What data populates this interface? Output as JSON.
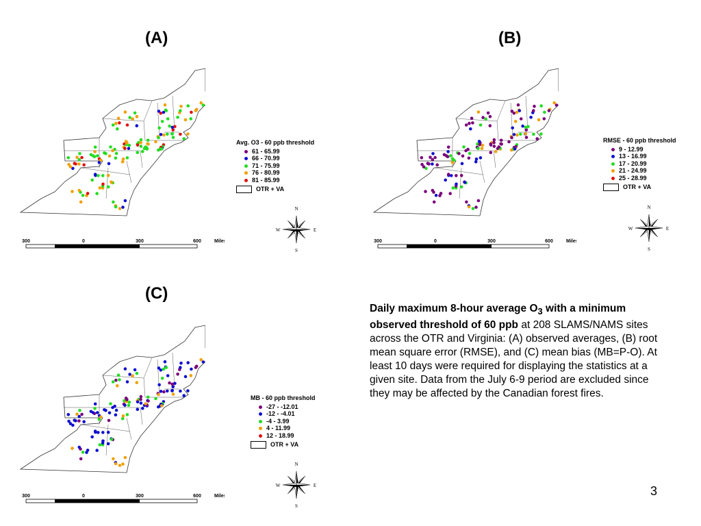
{
  "panels": [
    {
      "id": "A",
      "label": "(A)",
      "legend_title": "Avg. O3 - 60 ppb threshold",
      "classes": [
        {
          "label": "61 - 65.99",
          "color": "#7a007a"
        },
        {
          "label": "66 - 70.99",
          "color": "#1010d0"
        },
        {
          "label": "71 - 75.99",
          "color": "#22dd22"
        },
        {
          "label": "76 - 80.99",
          "color": "#f0a000"
        },
        {
          "label": "81 - 85.99",
          "color": "#e01010"
        }
      ],
      "boundary_label": "OTR + VA",
      "dominant_colors": [
        "#f0a000",
        "#22dd22",
        "#22dd22",
        "#1010d0",
        "#f0a000",
        "#22dd22",
        "#e01010"
      ]
    },
    {
      "id": "B",
      "label": "(B)",
      "legend_title": "RMSE - 60 ppb threshold",
      "classes": [
        {
          "label": "9 - 12.99",
          "color": "#7a007a"
        },
        {
          "label": "13 - 16.99",
          "color": "#1010d0"
        },
        {
          "label": "17 - 20.99",
          "color": "#22dd22"
        },
        {
          "label": "21 - 24.99",
          "color": "#f0a000"
        },
        {
          "label": "25 - 28.99",
          "color": "#e01010"
        }
      ],
      "boundary_label": "OTR + VA",
      "dominant_colors": [
        "#7a007a",
        "#7a007a",
        "#1010d0",
        "#1010d0",
        "#7a007a",
        "#22dd22",
        "#f0a000"
      ]
    },
    {
      "id": "C",
      "label": "(C)",
      "legend_title": "MB - 60 ppb threshold",
      "classes": [
        {
          "label": "-27 - -12.01",
          "color": "#7a007a"
        },
        {
          "label": "-12 - -4.01",
          "color": "#1010d0"
        },
        {
          "label": "-4 - 3.99",
          "color": "#22dd22"
        },
        {
          "label": "4 - 11.99",
          "color": "#f0a000"
        },
        {
          "label": "12 - 18.99",
          "color": "#e01010"
        }
      ],
      "boundary_label": "OTR + VA",
      "dominant_colors": [
        "#1010d0",
        "#7a007a",
        "#1010d0",
        "#22dd22",
        "#1010d0",
        "#7a007a",
        "#f0a000"
      ]
    }
  ],
  "compass": {
    "n": "N",
    "s": "S",
    "e": "E",
    "w": "W"
  },
  "scale": {
    "ticks": [
      "300",
      "0",
      "300",
      "600"
    ],
    "unit": "Miles"
  },
  "caption": {
    "bold_part1": "Daily maximum 8-hour average O",
    "bold_sub": "3",
    "bold_part2": " with a minimum observed threshold of 60 ppb",
    "rest": " at 208 SLAMS/NAMS sites across the OTR and Virginia: (A) observed averages, (B) root mean square error (RMSE), and (C) mean bias (MB=P-O).  At least 10 days were required for displaying the statistics at a given site.  Data from the July 6-9 period are excluded since they may be affected by the Canadian forest fires."
  },
  "page_number": "3"
}
